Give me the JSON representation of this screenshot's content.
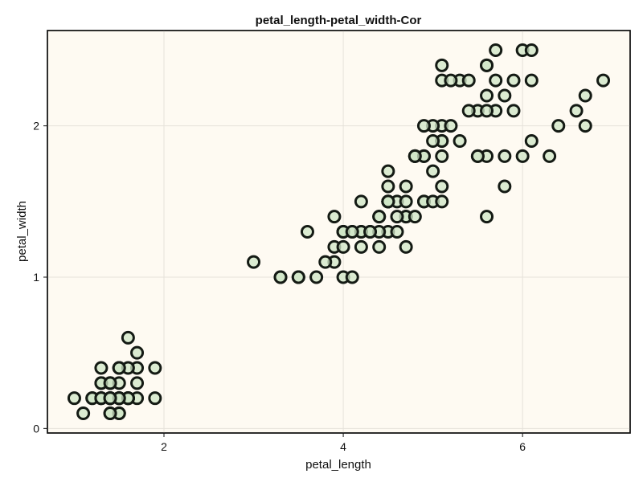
{
  "chart_data": {
    "type": "scatter",
    "title": "petal_length-petal_width-Cor",
    "xlabel": "petal_length",
    "ylabel": "petal_width",
    "xlim": [
      0.7,
      7.2
    ],
    "ylim": [
      -0.03,
      2.63
    ],
    "xticks": [
      2,
      4,
      6
    ],
    "yticks": [
      0,
      1,
      2
    ],
    "grid": true,
    "colors": {
      "background": "#fefaf2",
      "marker_fill": "#cfe5c6",
      "marker_edge": "#141a14"
    },
    "points": [
      [
        1.4,
        0.2
      ],
      [
        1.4,
        0.2
      ],
      [
        1.3,
        0.2
      ],
      [
        1.5,
        0.2
      ],
      [
        1.4,
        0.2
      ],
      [
        1.7,
        0.4
      ],
      [
        1.4,
        0.3
      ],
      [
        1.5,
        0.2
      ],
      [
        1.4,
        0.2
      ],
      [
        1.5,
        0.1
      ],
      [
        1.5,
        0.2
      ],
      [
        1.6,
        0.2
      ],
      [
        1.4,
        0.1
      ],
      [
        1.1,
        0.1
      ],
      [
        1.2,
        0.2
      ],
      [
        1.5,
        0.4
      ],
      [
        1.3,
        0.4
      ],
      [
        1.4,
        0.3
      ],
      [
        1.7,
        0.3
      ],
      [
        1.5,
        0.3
      ],
      [
        1.7,
        0.2
      ],
      [
        1.5,
        0.4
      ],
      [
        1.0,
        0.2
      ],
      [
        1.7,
        0.5
      ],
      [
        1.9,
        0.2
      ],
      [
        1.6,
        0.2
      ],
      [
        1.6,
        0.4
      ],
      [
        1.5,
        0.2
      ],
      [
        1.4,
        0.2
      ],
      [
        1.6,
        0.2
      ],
      [
        1.6,
        0.2
      ],
      [
        1.5,
        0.4
      ],
      [
        1.5,
        0.1
      ],
      [
        1.4,
        0.2
      ],
      [
        1.5,
        0.2
      ],
      [
        1.2,
        0.2
      ],
      [
        1.3,
        0.2
      ],
      [
        1.4,
        0.1
      ],
      [
        1.3,
        0.2
      ],
      [
        1.5,
        0.2
      ],
      [
        1.3,
        0.3
      ],
      [
        1.3,
        0.3
      ],
      [
        1.3,
        0.2
      ],
      [
        1.6,
        0.6
      ],
      [
        1.9,
        0.4
      ],
      [
        1.4,
        0.3
      ],
      [
        1.6,
        0.2
      ],
      [
        1.4,
        0.2
      ],
      [
        1.5,
        0.2
      ],
      [
        1.4,
        0.2
      ],
      [
        4.7,
        1.4
      ],
      [
        4.5,
        1.5
      ],
      [
        4.9,
        1.5
      ],
      [
        4.0,
        1.3
      ],
      [
        4.6,
        1.5
      ],
      [
        4.5,
        1.3
      ],
      [
        4.7,
        1.6
      ],
      [
        3.3,
        1.0
      ],
      [
        4.6,
        1.3
      ],
      [
        3.9,
        1.4
      ],
      [
        3.5,
        1.0
      ],
      [
        4.2,
        1.5
      ],
      [
        4.0,
        1.0
      ],
      [
        4.7,
        1.4
      ],
      [
        3.6,
        1.3
      ],
      [
        4.4,
        1.4
      ],
      [
        4.5,
        1.5
      ],
      [
        4.1,
        1.0
      ],
      [
        4.5,
        1.5
      ],
      [
        3.9,
        1.1
      ],
      [
        4.8,
        1.8
      ],
      [
        4.0,
        1.3
      ],
      [
        4.9,
        1.5
      ],
      [
        4.7,
        1.2
      ],
      [
        4.3,
        1.3
      ],
      [
        4.4,
        1.4
      ],
      [
        4.8,
        1.4
      ],
      [
        5.0,
        1.7
      ],
      [
        4.5,
        1.5
      ],
      [
        3.5,
        1.0
      ],
      [
        3.8,
        1.1
      ],
      [
        3.7,
        1.0
      ],
      [
        3.9,
        1.2
      ],
      [
        5.1,
        1.6
      ],
      [
        4.5,
        1.5
      ],
      [
        4.5,
        1.6
      ],
      [
        4.7,
        1.5
      ],
      [
        4.4,
        1.3
      ],
      [
        4.1,
        1.3
      ],
      [
        4.0,
        1.3
      ],
      [
        4.4,
        1.2
      ],
      [
        4.6,
        1.4
      ],
      [
        4.0,
        1.2
      ],
      [
        3.3,
        1.0
      ],
      [
        4.2,
        1.3
      ],
      [
        4.2,
        1.2
      ],
      [
        4.2,
        1.3
      ],
      [
        4.3,
        1.3
      ],
      [
        3.0,
        1.1
      ],
      [
        4.1,
        1.3
      ],
      [
        6.0,
        2.5
      ],
      [
        5.1,
        1.9
      ],
      [
        5.9,
        2.1
      ],
      [
        5.6,
        1.8
      ],
      [
        5.8,
        2.2
      ],
      [
        6.6,
        2.1
      ],
      [
        4.5,
        1.7
      ],
      [
        6.3,
        1.8
      ],
      [
        5.8,
        1.8
      ],
      [
        6.1,
        2.5
      ],
      [
        5.1,
        2.0
      ],
      [
        5.3,
        1.9
      ],
      [
        5.5,
        2.1
      ],
      [
        5.0,
        2.0
      ],
      [
        5.1,
        2.4
      ],
      [
        5.3,
        2.3
      ],
      [
        5.5,
        1.8
      ],
      [
        6.7,
        2.2
      ],
      [
        6.9,
        2.3
      ],
      [
        5.0,
        1.5
      ],
      [
        5.7,
        2.3
      ],
      [
        4.9,
        2.0
      ],
      [
        6.7,
        2.0
      ],
      [
        4.9,
        1.8
      ],
      [
        5.7,
        2.1
      ],
      [
        6.0,
        1.8
      ],
      [
        4.8,
        1.8
      ],
      [
        4.9,
        1.8
      ],
      [
        5.6,
        2.1
      ],
      [
        5.8,
        1.6
      ],
      [
        6.1,
        1.9
      ],
      [
        6.4,
        2.0
      ],
      [
        5.6,
        2.2
      ],
      [
        5.1,
        1.5
      ],
      [
        5.6,
        1.4
      ],
      [
        6.1,
        2.3
      ],
      [
        5.6,
        2.4
      ],
      [
        5.5,
        1.8
      ],
      [
        4.8,
        1.8
      ],
      [
        5.4,
        2.1
      ],
      [
        5.6,
        2.4
      ],
      [
        5.1,
        2.3
      ],
      [
        5.1,
        1.9
      ],
      [
        5.9,
        2.3
      ],
      [
        5.7,
        2.5
      ],
      [
        5.2,
        2.3
      ],
      [
        5.0,
        1.9
      ],
      [
        5.2,
        2.0
      ],
      [
        5.4,
        2.3
      ],
      [
        5.1,
        1.8
      ]
    ]
  }
}
